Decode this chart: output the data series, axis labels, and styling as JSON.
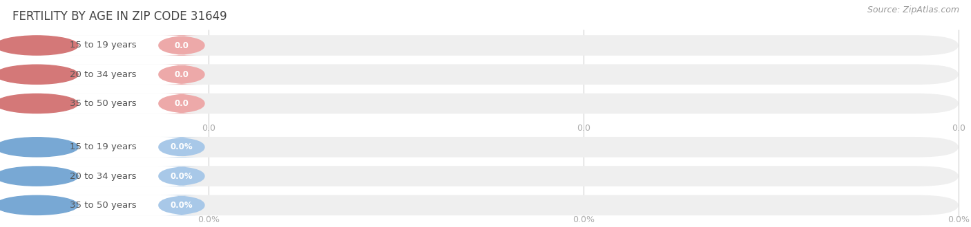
{
  "title": "FERTILITY BY AGE IN ZIP CODE 31649",
  "source": "Source: ZipAtlas.com",
  "categories": [
    "15 to 19 years",
    "20 to 34 years",
    "35 to 50 years"
  ],
  "group1_value_labels": [
    "0.0",
    "0.0",
    "0.0"
  ],
  "group2_value_labels": [
    "0.0%",
    "0.0%",
    "0.0%"
  ],
  "group1_bar_color": "#eda9a9",
  "group1_circle_color": "#d47878",
  "group2_bar_color": "#a8c8e8",
  "group2_circle_color": "#78a8d4",
  "bar_bg_color": "#efefef",
  "background_color": "#ffffff",
  "xtick_labels_top": [
    "0.0",
    "0.0",
    "0.0"
  ],
  "xtick_labels_bottom": [
    "0.0%",
    "0.0%",
    "0.0%"
  ],
  "title_fontsize": 12,
  "label_fontsize": 9.5,
  "value_fontsize": 8.5,
  "tick_fontsize": 9,
  "source_fontsize": 9
}
